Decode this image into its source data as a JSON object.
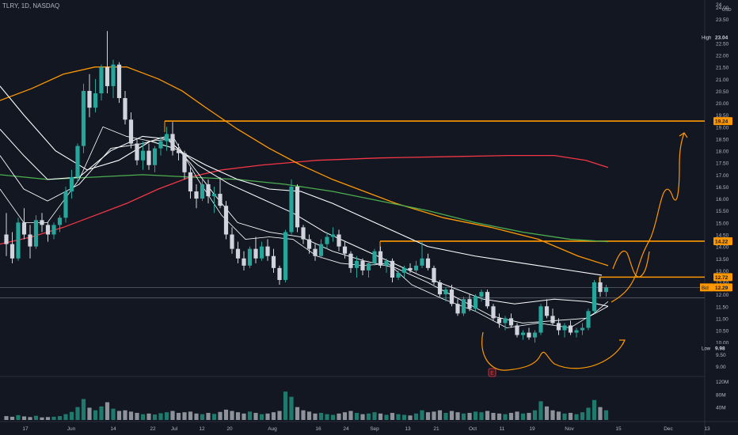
{
  "header": {
    "symbol": "TLRY, 1D, NASDAQ"
  },
  "price_axis": {
    "currency": "USD",
    "ticks": [
      "24.00",
      "23.50",
      "22.50",
      "22.00",
      "21.50",
      "21.00",
      "20.50",
      "20.00",
      "19.50",
      "19.00",
      "18.50",
      "18.00",
      "17.50",
      "17.00",
      "16.50",
      "16.00",
      "15.50",
      "15.00",
      "14.50",
      "14.00",
      "13.50",
      "13.00",
      "12.50",
      "12.00",
      "11.50",
      "11.00",
      "10.50",
      "10.00",
      "9.50",
      "9.00"
    ],
    "top_tick": "24"
  },
  "volume_axis": {
    "ticks": [
      "120M",
      "80M",
      "40M"
    ]
  },
  "time_axis": {
    "ticks": [
      "17",
      "Jun",
      "14",
      "22",
      "Jul",
      "12",
      "20",
      "Aug",
      "16",
      "24",
      "Sep",
      "13",
      "21",
      "Oct",
      "11",
      "19",
      "Nov",
      "15",
      "Dec",
      "13"
    ]
  },
  "badges": {
    "high_label": "High",
    "high_value": "23.04",
    "low_label": "Low",
    "low_value": "9.98",
    "level1": "19.24",
    "level2": "14.22",
    "level3": "12.72",
    "last_label": "Bid",
    "last_value": "12.29"
  },
  "earnings_marker": "E",
  "colors": {
    "background": "#131722",
    "up": "#26a69a",
    "down": "#d1d4dc",
    "level": "#ff9800",
    "ma_orange": "#ff9800",
    "ma_red": "#f23645",
    "ma_green": "#4caf50",
    "ma_white": "#ffffff"
  },
  "chart_data": {
    "type": "candlestick",
    "title": "TLRY, 1D, NASDAQ",
    "ylim": [
      8.7,
      24.2
    ],
    "ohlc": [
      [
        14.5,
        15.4,
        13.6,
        14.1
      ],
      [
        14.1,
        14.6,
        13.3,
        13.5
      ],
      [
        13.5,
        15.2,
        13.4,
        15.0
      ],
      [
        15.0,
        15.6,
        14.3,
        14.5
      ],
      [
        14.5,
        14.9,
        13.5,
        14.0
      ],
      [
        14.0,
        15.3,
        13.9,
        15.1
      ],
      [
        15.1,
        15.4,
        14.6,
        14.9
      ],
      [
        14.9,
        15.0,
        14.2,
        14.5
      ],
      [
        14.5,
        15.0,
        14.3,
        14.9
      ],
      [
        14.9,
        15.3,
        14.6,
        15.2
      ],
      [
        15.2,
        16.5,
        15.0,
        16.3
      ],
      [
        16.3,
        17.2,
        16.0,
        16.9
      ],
      [
        16.9,
        18.3,
        16.7,
        18.2
      ],
      [
        18.2,
        20.8,
        17.9,
        20.5
      ],
      [
        20.5,
        21.2,
        19.4,
        19.8
      ],
      [
        19.8,
        21.0,
        19.6,
        20.4
      ],
      [
        20.4,
        21.6,
        20.1,
        21.5
      ],
      [
        21.5,
        23.0,
        20.4,
        20.7
      ],
      [
        20.7,
        21.8,
        20.2,
        21.6
      ],
      [
        21.6,
        21.7,
        20.0,
        20.2
      ],
      [
        20.2,
        20.5,
        19.1,
        19.3
      ],
      [
        19.3,
        19.6,
        18.1,
        18.3
      ],
      [
        18.3,
        18.5,
        17.4,
        17.6
      ],
      [
        17.6,
        18.4,
        17.2,
        18.0
      ],
      [
        18.0,
        18.3,
        17.2,
        17.4
      ],
      [
        17.4,
        18.2,
        17.1,
        18.1
      ],
      [
        18.1,
        18.6,
        17.8,
        18.4
      ],
      [
        18.4,
        19.0,
        18.0,
        18.7
      ],
      [
        18.7,
        19.2,
        17.8,
        18.0
      ],
      [
        18.0,
        18.3,
        17.6,
        17.9
      ],
      [
        17.9,
        18.0,
        16.8,
        17.1
      ],
      [
        17.1,
        17.3,
        16.0,
        16.3
      ],
      [
        16.3,
        16.6,
        15.6,
        16.0
      ],
      [
        16.0,
        16.8,
        15.9,
        16.6
      ],
      [
        16.6,
        16.8,
        15.8,
        16.1
      ],
      [
        16.1,
        16.5,
        15.4,
        16.2
      ],
      [
        16.2,
        16.9,
        15.6,
        15.7
      ],
      [
        15.7,
        15.9,
        14.3,
        14.5
      ],
      [
        14.5,
        14.8,
        13.7,
        13.9
      ],
      [
        13.9,
        14.2,
        13.3,
        13.5
      ],
      [
        13.5,
        13.8,
        13.0,
        13.2
      ],
      [
        13.2,
        14.0,
        13.1,
        13.9
      ],
      [
        13.9,
        14.4,
        13.3,
        13.5
      ],
      [
        13.5,
        14.2,
        13.4,
        14.0
      ],
      [
        14.0,
        14.3,
        13.4,
        13.6
      ],
      [
        13.6,
        13.9,
        12.9,
        13.1
      ],
      [
        13.1,
        13.2,
        12.4,
        12.6
      ],
      [
        12.6,
        14.7,
        12.5,
        14.6
      ],
      [
        14.6,
        16.8,
        14.5,
        16.5
      ],
      [
        16.5,
        16.6,
        14.6,
        14.8
      ],
      [
        14.8,
        14.9,
        14.1,
        14.3
      ],
      [
        14.3,
        14.5,
        13.7,
        13.9
      ],
      [
        13.9,
        14.1,
        13.4,
        13.6
      ],
      [
        13.6,
        14.3,
        13.5,
        14.1
      ],
      [
        14.1,
        14.6,
        13.9,
        14.4
      ],
      [
        14.4,
        14.8,
        14.2,
        14.5
      ],
      [
        14.5,
        14.7,
        13.8,
        14.0
      ],
      [
        14.0,
        14.2,
        13.5,
        13.7
      ],
      [
        13.7,
        13.8,
        12.9,
        13.1
      ],
      [
        13.1,
        13.6,
        12.7,
        13.4
      ],
      [
        13.4,
        13.5,
        12.8,
        13.0
      ],
      [
        13.0,
        13.4,
        12.7,
        13.3
      ],
      [
        13.3,
        13.9,
        13.2,
        13.8
      ],
      [
        13.8,
        14.0,
        13.1,
        13.2
      ],
      [
        13.2,
        13.5,
        12.9,
        13.4
      ],
      [
        13.4,
        13.5,
        12.5,
        12.7
      ],
      [
        12.7,
        13.0,
        12.6,
        12.9
      ],
      [
        12.9,
        13.2,
        12.7,
        13.1
      ],
      [
        13.1,
        13.3,
        12.9,
        13.0
      ],
      [
        13.0,
        13.4,
        12.9,
        13.2
      ],
      [
        13.2,
        14.2,
        13.1,
        13.5
      ],
      [
        13.5,
        13.7,
        13.0,
        13.1
      ],
      [
        13.1,
        13.2,
        12.4,
        12.5
      ],
      [
        12.5,
        12.6,
        11.9,
        12.0
      ],
      [
        12.0,
        12.3,
        11.7,
        12.2
      ],
      [
        12.2,
        12.4,
        11.5,
        11.6
      ],
      [
        11.6,
        11.8,
        11.1,
        11.2
      ],
      [
        11.2,
        11.9,
        11.1,
        11.8
      ],
      [
        11.8,
        12.0,
        11.3,
        11.4
      ],
      [
        11.4,
        12.0,
        11.3,
        11.9
      ],
      [
        11.9,
        12.2,
        11.7,
        12.1
      ],
      [
        12.1,
        12.2,
        11.4,
        11.5
      ],
      [
        11.5,
        11.6,
        10.9,
        11.0
      ],
      [
        11.0,
        11.2,
        10.6,
        10.8
      ],
      [
        10.8,
        11.1,
        10.5,
        11.0
      ],
      [
        11.0,
        11.2,
        10.6,
        10.7
      ],
      [
        10.7,
        10.8,
        10.2,
        10.3
      ],
      [
        10.3,
        10.5,
        10.1,
        10.4
      ],
      [
        10.4,
        10.6,
        10.1,
        10.2
      ],
      [
        10.2,
        10.5,
        9.98,
        10.4
      ],
      [
        10.4,
        11.6,
        10.3,
        11.5
      ],
      [
        11.5,
        11.8,
        11.0,
        11.1
      ],
      [
        11.1,
        11.4,
        10.7,
        10.8
      ],
      [
        10.8,
        11.0,
        10.3,
        10.5
      ],
      [
        10.5,
        10.8,
        10.2,
        10.7
      ],
      [
        10.7,
        10.9,
        10.3,
        10.4
      ],
      [
        10.4,
        10.6,
        10.2,
        10.5
      ],
      [
        10.5,
        10.8,
        10.3,
        10.6
      ],
      [
        10.6,
        11.4,
        10.5,
        11.3
      ],
      [
        11.3,
        12.6,
        11.2,
        12.5
      ],
      [
        12.5,
        12.7,
        11.9,
        12.1
      ],
      [
        12.1,
        12.4,
        11.9,
        12.29
      ]
    ],
    "volume_M": [
      12,
      10,
      15,
      11,
      9,
      13,
      8,
      9,
      10,
      12,
      18,
      25,
      40,
      65,
      38,
      30,
      42,
      55,
      35,
      28,
      30,
      26,
      22,
      18,
      20,
      17,
      21,
      24,
      28,
      22,
      24,
      26,
      20,
      18,
      22,
      19,
      25,
      32,
      28,
      24,
      20,
      26,
      22,
      18,
      20,
      24,
      28,
      88,
      72,
      40,
      30,
      26,
      20,
      22,
      18,
      16,
      20,
      24,
      28,
      22,
      18,
      20,
      24,
      20,
      16,
      22,
      18,
      16,
      14,
      20,
      30,
      24,
      26,
      30,
      22,
      28,
      24,
      20,
      22,
      26,
      24,
      28,
      22,
      20,
      18,
      22,
      26,
      20,
      22,
      30,
      58,
      42,
      30,
      26,
      20,
      22,
      18,
      24,
      38,
      62,
      40,
      30
    ],
    "horizontal_levels": [
      19.24,
      14.22,
      12.72,
      12.29,
      11.85
    ],
    "moving_average_colors": [
      "#ff9800",
      "#f23645",
      "#4caf50",
      "#ffffff"
    ]
  }
}
